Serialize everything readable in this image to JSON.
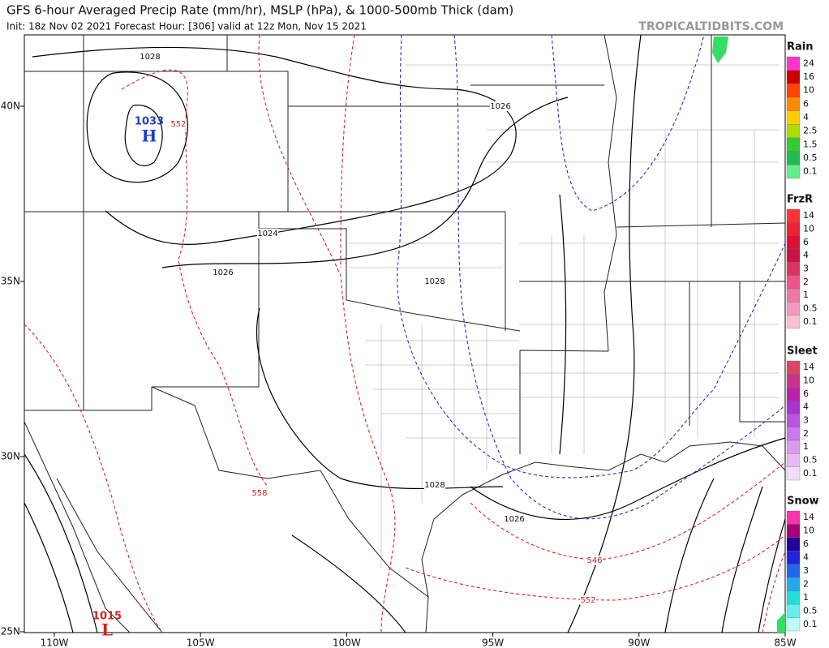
{
  "header": {
    "title": "GFS 6-hour Averaged Precip Rate (mm/hr), MSLP (hPa), & 1000-500mb Thick (dam)",
    "init": "Init: 18z Nov 02 2021   Forecast Hour: [306]   valid at 12z Mon, Nov 15 2021",
    "watermark": "TROPICALTIDBITS.COM"
  },
  "axes": {
    "lon_labels": [
      "110W",
      "105W",
      "100W",
      "95W",
      "90W",
      "85W"
    ],
    "lat_labels": [
      "40N",
      "35N",
      "30N",
      "25N"
    ]
  },
  "legend": [
    {
      "title": "Rain",
      "labels": [
        "24",
        "16",
        "10",
        "6",
        "4",
        "2.5",
        "1.5",
        "0.5",
        "0.1"
      ]
    },
    {
      "title": "FrzR",
      "labels": [
        "14",
        "10",
        "6",
        "4",
        "3",
        "2",
        "1",
        "0.5",
        "0.1"
      ]
    },
    {
      "title": "Sleet",
      "labels": [
        "14",
        "10",
        "6",
        "4",
        "3",
        "2",
        "1",
        "0.5",
        "0.1"
      ]
    },
    {
      "title": "Snow",
      "labels": [
        "14",
        "10",
        "6",
        "4",
        "3",
        "2",
        "1",
        "0.5",
        "0.1"
      ]
    }
  ],
  "map": {
    "isobar_labels": [
      "1028",
      "1026",
      "1024",
      "1026",
      "1028",
      "1028",
      "1026"
    ],
    "thickness_labels": [
      "552",
      "558",
      "546",
      "552"
    ],
    "highs": [
      {
        "pressure": "1033",
        "symbol": "H"
      }
    ],
    "lows": [
      {
        "pressure": "1015",
        "symbol": "L"
      }
    ]
  }
}
